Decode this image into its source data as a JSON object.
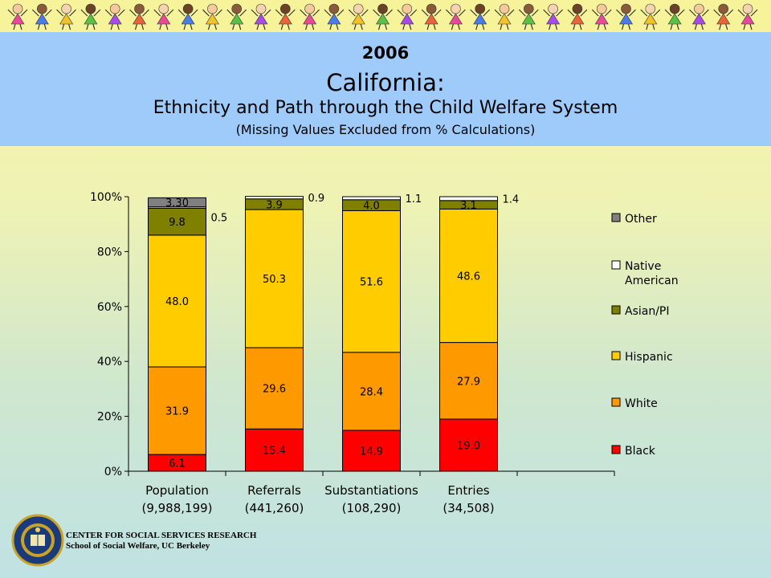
{
  "header": {
    "year": "2006",
    "state": "California:",
    "title": "Ethnicity and Path through the Child Welfare System",
    "subtitle": "(Missing Values Excluded from % Calculations)"
  },
  "chart_data": {
    "type": "bar",
    "stacked": true,
    "categories": [
      "Population",
      "Referrals",
      "Substantiations",
      "Entries"
    ],
    "category_counts": [
      "(9,988,199)",
      "(441,260)",
      "(108,290)",
      "(34,508)"
    ],
    "yticks": [
      "0%",
      "20%",
      "40%",
      "60%",
      "80%",
      "100%"
    ],
    "ylim": [
      0,
      100
    ],
    "legend_position": "right",
    "series": [
      {
        "name": "Black",
        "color": "#ff0000",
        "values": [
          6.1,
          15.4,
          14.9,
          19.0
        ],
        "labels": [
          "6.1",
          "15.4",
          "14.9",
          "19.0"
        ]
      },
      {
        "name": "White",
        "color": "#ff9900",
        "values": [
          31.9,
          29.6,
          28.4,
          27.9
        ],
        "labels": [
          "31.9",
          "29.6",
          "28.4",
          "27.9"
        ]
      },
      {
        "name": "Hispanic",
        "color": "#ffcc00",
        "values": [
          48.0,
          50.3,
          51.6,
          48.6
        ],
        "labels": [
          "48.0",
          "50.3",
          "51.6",
          "48.6"
        ]
      },
      {
        "name": "Asian/PI",
        "color": "#808000",
        "values": [
          9.8,
          3.9,
          4.0,
          3.1
        ],
        "labels": [
          "9.8",
          "3.9",
          "4.0",
          "3.1"
        ]
      },
      {
        "name": "Native American",
        "legend_lines": [
          "Native",
          "American"
        ],
        "color": "#ffffff",
        "values": [
          0.5,
          0.9,
          1.1,
          1.4
        ],
        "labels": [
          "0.5",
          "0.9",
          "1.1",
          "1.4"
        ]
      },
      {
        "name": "Other",
        "color": "#808080",
        "values": [
          3.3,
          0,
          0,
          0
        ],
        "labels": [
          "3.30",
          "",
          "",
          ""
        ]
      }
    ]
  },
  "footer": {
    "org": "CENTER FOR SOCIAL SERVICES RESEARCH",
    "school": "School of Social Welfare, UC Berkeley"
  },
  "decor": {
    "icon": "dancing-children-border-icon"
  }
}
